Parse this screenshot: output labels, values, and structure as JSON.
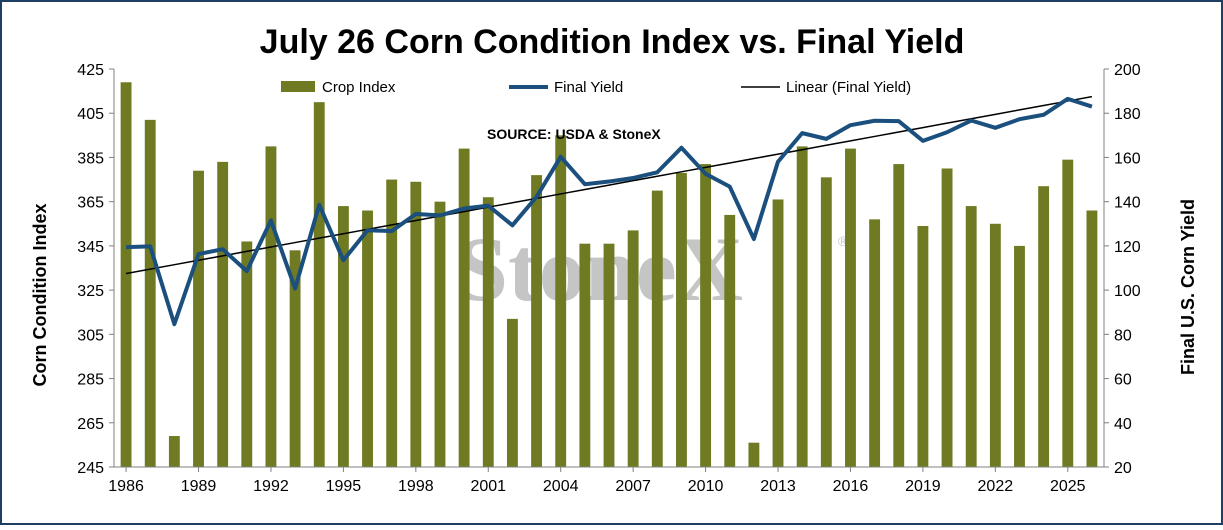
{
  "chart_data": {
    "type": "bar",
    "title": "July 26 Corn Condition Index vs. Final Yield",
    "annotation": "SOURCE: USDA & StoneX",
    "watermark": "StoneX",
    "watermark_mark": "®",
    "ylabel": "Corn Condition Index",
    "y2label": "Final U.S. Corn Yield",
    "ylim": [
      245,
      425
    ],
    "yticks": [
      245,
      265,
      285,
      305,
      325,
      345,
      365,
      385,
      405,
      425
    ],
    "y2lim": [
      20,
      200
    ],
    "y2ticks": [
      20,
      40,
      60,
      80,
      100,
      120,
      140,
      160,
      180,
      200
    ],
    "x_tick_labels": [
      "1986",
      "1989",
      "1992",
      "1995",
      "1998",
      "2001",
      "2004",
      "2007",
      "2010",
      "2013",
      "2016",
      "2019",
      "2022",
      "2025"
    ],
    "grid": false,
    "legend_position": "top",
    "x": [
      1986,
      1987,
      1988,
      1989,
      1990,
      1991,
      1992,
      1993,
      1994,
      1995,
      1996,
      1997,
      1998,
      1999,
      2000,
      2001,
      2002,
      2003,
      2004,
      2005,
      2006,
      2007,
      2008,
      2009,
      2010,
      2011,
      2012,
      2013,
      2014,
      2015,
      2016,
      2017,
      2018,
      2019,
      2020,
      2021,
      2022,
      2023,
      2024,
      2025,
      2026
    ],
    "series": [
      {
        "name": "Crop Index",
        "type": "bar",
        "axis": "left",
        "color": "#6f7a22",
        "values": [
          419,
          402,
          259,
          379,
          383,
          347,
          390,
          343,
          410,
          363,
          361,
          375,
          374,
          365,
          389,
          367,
          312,
          377,
          395,
          346,
          346,
          352,
          370,
          378,
          382,
          359,
          256,
          366,
          390,
          376,
          389,
          357,
          382,
          354,
          380,
          363,
          355,
          345,
          372,
          384,
          361
        ]
      },
      {
        "name": "Final Yield",
        "type": "line",
        "axis": "right",
        "color": "#1a4f7e",
        "values": [
          119.4,
          119.8,
          84.6,
          116.3,
          118.5,
          108.6,
          131.5,
          100.7,
          138.6,
          113.5,
          127.1,
          126.7,
          134.4,
          133.8,
          136.9,
          138.2,
          129.3,
          142.2,
          160.3,
          147.9,
          149.1,
          150.7,
          153.3,
          164.4,
          152.6,
          146.8,
          123.1,
          158.1,
          171.0,
          168.4,
          174.6,
          176.6,
          176.4,
          167.5,
          171.4,
          176.7,
          173.4,
          177.3,
          179.3,
          186.5,
          183.0
        ]
      },
      {
        "name": "Linear (Final Yield)",
        "type": "line",
        "axis": "right",
        "color": "#000000",
        "values": [
          107.5,
          109.5,
          111.5,
          113.5,
          115.5,
          117.5,
          119.5,
          121.5,
          123.5,
          125.5,
          127.5,
          129.5,
          131.5,
          133.5,
          135.5,
          137.5,
          139.5,
          141.5,
          143.5,
          145.5,
          147.5,
          149.5,
          151.5,
          153.5,
          155.5,
          157.5,
          159.5,
          161.5,
          163.5,
          165.5,
          167.5,
          169.5,
          171.5,
          173.5,
          175.5,
          177.5,
          179.5,
          181.5,
          183.5,
          185.5,
          187.5
        ]
      }
    ]
  }
}
